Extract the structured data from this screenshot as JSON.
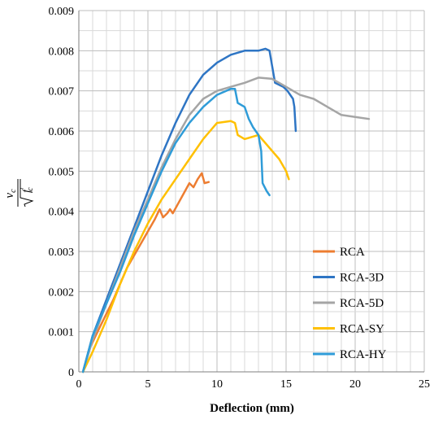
{
  "chart_data": {
    "type": "line",
    "xlabel": "Deflection (mm)",
    "ylabel": {
      "numerator": "v",
      "numerator_sub": "c",
      "denominator": "f",
      "denominator_prime": "′",
      "denominator_sub": "c"
    },
    "xlim": [
      0,
      25
    ],
    "ylim": [
      0,
      0.009
    ],
    "x_ticks": [
      "0",
      "5",
      "10",
      "15",
      "20",
      "25"
    ],
    "y_ticks": [
      "0",
      "0.001",
      "0.002",
      "0.003",
      "0.004",
      "0.005",
      "0.006",
      "0.007",
      "0.008",
      "0.009"
    ],
    "grid": true,
    "legend_position": "bottom-right",
    "series": [
      {
        "name": "RCA",
        "color": "#ED7D31",
        "points": [
          [
            0.3,
            0
          ],
          [
            0.8,
            0.0006
          ],
          [
            1.5,
            0.0011
          ],
          [
            2.5,
            0.0018
          ],
          [
            3.5,
            0.0026
          ],
          [
            4.5,
            0.0032
          ],
          [
            5.5,
            0.0038
          ],
          [
            5.85,
            0.00405
          ],
          [
            6.1,
            0.00385
          ],
          [
            6.4,
            0.00395
          ],
          [
            6.6,
            0.00405
          ],
          [
            6.8,
            0.00395
          ],
          [
            7.2,
            0.0042
          ],
          [
            7.6,
            0.00445
          ],
          [
            8.0,
            0.0047
          ],
          [
            8.3,
            0.0046
          ],
          [
            8.6,
            0.0048
          ],
          [
            8.9,
            0.00495
          ],
          [
            9.1,
            0.0047
          ],
          [
            9.4,
            0.00473
          ]
        ]
      },
      {
        "name": "RCA-3D",
        "color": "#2E75C4",
        "points": [
          [
            0.3,
            0
          ],
          [
            1,
            0.0009
          ],
          [
            2,
            0.0018
          ],
          [
            3,
            0.0027
          ],
          [
            4,
            0.0036
          ],
          [
            5,
            0.0045
          ],
          [
            6,
            0.0054
          ],
          [
            7,
            0.0062
          ],
          [
            8,
            0.0069
          ],
          [
            9,
            0.0074
          ],
          [
            10,
            0.0077
          ],
          [
            11,
            0.0079
          ],
          [
            12,
            0.008
          ],
          [
            13,
            0.008
          ],
          [
            13.5,
            0.00805
          ],
          [
            13.8,
            0.008
          ],
          [
            14.0,
            0.0076
          ],
          [
            14.2,
            0.0072
          ],
          [
            14.8,
            0.0071
          ],
          [
            15.1,
            0.007
          ],
          [
            15.5,
            0.0068
          ],
          [
            15.6,
            0.0066
          ],
          [
            15.7,
            0.006
          ]
        ]
      },
      {
        "name": "RCA-5D",
        "color": "#A5A5A5",
        "points": [
          [
            0.3,
            0
          ],
          [
            1,
            0.0008
          ],
          [
            2,
            0.0017
          ],
          [
            3,
            0.0026
          ],
          [
            4,
            0.0035
          ],
          [
            5,
            0.0043
          ],
          [
            6,
            0.0051
          ],
          [
            7,
            0.0058
          ],
          [
            8,
            0.0064
          ],
          [
            9,
            0.0068
          ],
          [
            10,
            0.007
          ],
          [
            11,
            0.0071
          ],
          [
            12,
            0.0072
          ],
          [
            13,
            0.00733
          ],
          [
            14,
            0.0073
          ],
          [
            14.5,
            0.0072
          ],
          [
            15,
            0.0071
          ],
          [
            16,
            0.0069
          ],
          [
            17,
            0.0068
          ],
          [
            18,
            0.0066
          ],
          [
            19,
            0.0064
          ],
          [
            20,
            0.00635
          ],
          [
            21,
            0.0063
          ]
        ]
      },
      {
        "name": "RCA-SY",
        "color": "#FFC000",
        "points": [
          [
            0.3,
            0
          ],
          [
            1,
            0.0005
          ],
          [
            2,
            0.0013
          ],
          [
            3,
            0.0022
          ],
          [
            4,
            0.003
          ],
          [
            5,
            0.0037
          ],
          [
            6,
            0.0043
          ],
          [
            7,
            0.0048
          ],
          [
            8,
            0.0053
          ],
          [
            9,
            0.0058
          ],
          [
            10,
            0.0062
          ],
          [
            11,
            0.00625
          ],
          [
            11.3,
            0.0062
          ],
          [
            11.5,
            0.0059
          ],
          [
            12,
            0.0058
          ],
          [
            12.5,
            0.00585
          ],
          [
            13,
            0.0059
          ],
          [
            13.5,
            0.0057
          ],
          [
            14,
            0.0055
          ],
          [
            14.5,
            0.0053
          ],
          [
            15,
            0.005
          ],
          [
            15.2,
            0.0048
          ]
        ]
      },
      {
        "name": "RCA-HY",
        "color": "#2F9CD8",
        "points": [
          [
            0.3,
            0
          ],
          [
            1,
            0.0009
          ],
          [
            2,
            0.0017
          ],
          [
            3,
            0.0025
          ],
          [
            4,
            0.0034
          ],
          [
            5,
            0.0042
          ],
          [
            6,
            0.005
          ],
          [
            7,
            0.0057
          ],
          [
            8,
            0.0062
          ],
          [
            9,
            0.0066
          ],
          [
            10,
            0.0069
          ],
          [
            11,
            0.00705
          ],
          [
            11.3,
            0.00705
          ],
          [
            11.5,
            0.0067
          ],
          [
            12,
            0.0066
          ],
          [
            12.3,
            0.0063
          ],
          [
            12.6,
            0.0061
          ],
          [
            13,
            0.0059
          ],
          [
            13.2,
            0.0055
          ],
          [
            13.3,
            0.0047
          ],
          [
            13.6,
            0.0045
          ],
          [
            13.8,
            0.0044
          ]
        ]
      }
    ]
  }
}
